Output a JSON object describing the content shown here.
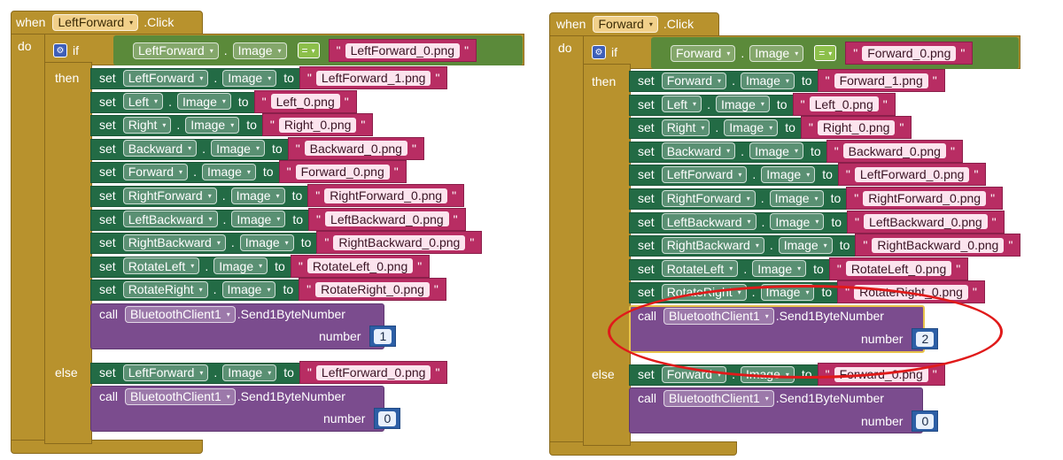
{
  "kw": {
    "when": "when",
    "click": ".Click",
    "do": "do",
    "if": "if",
    "then": "then",
    "else": "else",
    "set": "set",
    "to": "to",
    "call": "call",
    "number": "number",
    "dot": ".",
    "quote": "\"",
    "eq": "=",
    "arrow": "▾"
  },
  "left": {
    "event_component": "LeftForward",
    "cond_component": "LeftForward",
    "cond_prop": "Image",
    "cond_value": "LeftForward_0.png",
    "then_sets": [
      {
        "component": "LeftForward",
        "value": "LeftForward_1.png"
      },
      {
        "component": "Left",
        "value": "Left_0.png"
      },
      {
        "component": "Right",
        "value": "Right_0.png"
      },
      {
        "component": "Backward",
        "value": "Backward_0.png"
      },
      {
        "component": "Forward",
        "value": "Forward_0.png"
      },
      {
        "component": "RightForward",
        "value": "RightForward_0.png"
      },
      {
        "component": "LeftBackward",
        "value": "LeftBackward_0.png"
      },
      {
        "component": "RightBackward",
        "value": "RightBackward_0.png"
      },
      {
        "component": "RotateLeft",
        "value": "RotateLeft_0.png"
      },
      {
        "component": "RotateRight",
        "value": "RotateRight_0.png"
      }
    ],
    "then_call": {
      "component": "BluetoothClient1",
      "method": ".Send1ByteNumber",
      "number": "1"
    },
    "else_set": {
      "component": "LeftForward",
      "value": "LeftForward_0.png"
    },
    "else_call": {
      "component": "BluetoothClient1",
      "method": ".Send1ByteNumber",
      "number": "0"
    },
    "prop": "Image"
  },
  "right": {
    "event_component": "Forward",
    "cond_component": "Forward",
    "cond_prop": "Image",
    "cond_value": "Forward_0.png",
    "then_sets": [
      {
        "component": "Forward",
        "value": "Forward_1.png"
      },
      {
        "component": "Left",
        "value": "Left_0.png"
      },
      {
        "component": "Right",
        "value": "Right_0.png"
      },
      {
        "component": "Backward",
        "value": "Backward_0.png"
      },
      {
        "component": "LeftForward",
        "value": "LeftForward_0.png"
      },
      {
        "component": "RightForward",
        "value": "RightForward_0.png"
      },
      {
        "component": "LeftBackward",
        "value": "LeftBackward_0.png"
      },
      {
        "component": "RightBackward",
        "value": "RightBackward_0.png"
      },
      {
        "component": "RotateLeft",
        "value": "RotateLeft_0.png"
      },
      {
        "component": "RotateRight",
        "value": "RotateRight_0.png"
      }
    ],
    "then_call": {
      "component": "BluetoothClient1",
      "method": ".Send1ByteNumber",
      "number": "2"
    },
    "else_set": {
      "component": "Forward",
      "value": "Forward_0.png"
    },
    "else_call": {
      "component": "BluetoothClient1",
      "method": ".Send1ByteNumber",
      "number": "0"
    },
    "prop": "Image"
  },
  "colors": {
    "event": "#b8922d",
    "set": "#236b45",
    "string": "#b82d63",
    "call": "#7b4c8e",
    "number": "#2d5fa6",
    "highlight": "#e01a1a"
  }
}
